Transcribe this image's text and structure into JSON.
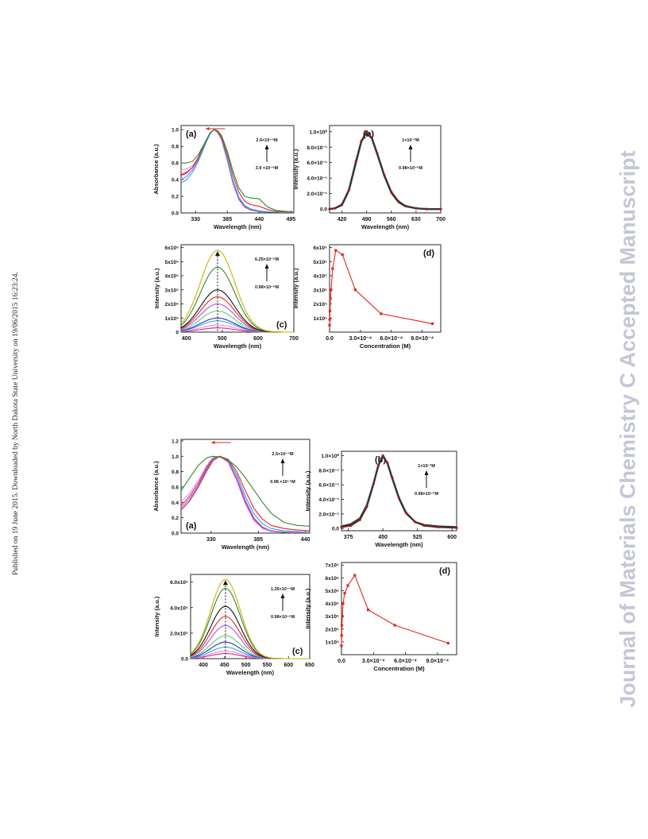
{
  "margin_left": "Published on 19 June 2015. Downloaded by North Dakota State University on 19/06/2015 16:23:24.",
  "margin_right": "Journal of Materials Chemistry C Accepted Manuscript",
  "colors": {
    "red": "#e5261d",
    "spectra": [
      "#e91c8c",
      "#f08bd0",
      "#33a6e0",
      "#2f2fcf",
      "#5bd45b",
      "#b64de0",
      "#e52525",
      "#111111",
      "#2f8a2f",
      "#d0b000"
    ]
  },
  "chart_data": [
    {
      "id": "f1a",
      "type": "line",
      "label": "(a)",
      "xlabel": "Wavelength (nm)",
      "ylabel": "Absorbance (a.u.)",
      "xlim": [
        305,
        500
      ],
      "ylim": [
        0,
        1.05
      ],
      "xticks": [
        {
          "v": 330,
          "t": "330"
        },
        {
          "v": 385,
          "t": "385"
        },
        {
          "v": 440,
          "t": "440"
        },
        {
          "v": 495,
          "t": "495"
        }
      ],
      "yticks": [
        {
          "v": 0,
          "t": "0.0"
        },
        {
          "v": 0.2,
          "t": "0.2"
        },
        {
          "v": 0.4,
          "t": "0.4"
        },
        {
          "v": 0.6,
          "t": "0.6"
        },
        {
          "v": 0.8,
          "t": "0.8"
        },
        {
          "v": 1.0,
          "t": "1.0"
        }
      ],
      "annot_top": "2.5×10⁻⁴M",
      "annot_bottom": "3.9 ×10⁻⁶M",
      "x": [
        305,
        315,
        325,
        335,
        345,
        355,
        362,
        368,
        375,
        385,
        395,
        405,
        415,
        425,
        440,
        455,
        470,
        485,
        500
      ],
      "series": [
        {
          "values": [
            0.52,
            0.53,
            0.57,
            0.66,
            0.8,
            0.95,
            1.0,
            0.98,
            0.9,
            0.66,
            0.38,
            0.18,
            0.08,
            0.04,
            0.02,
            0.01,
            0.01,
            0.005,
            0.005
          ]
        },
        {
          "values": [
            0.46,
            0.49,
            0.55,
            0.66,
            0.81,
            0.96,
            1.0,
            0.97,
            0.88,
            0.63,
            0.35,
            0.16,
            0.07,
            0.035,
            0.015,
            0.01,
            0.01,
            0.005,
            0.005
          ]
        },
        {
          "values": [
            0.4,
            0.44,
            0.52,
            0.64,
            0.8,
            0.95,
            1.0,
            0.98,
            0.89,
            0.64,
            0.36,
            0.17,
            0.08,
            0.04,
            0.02,
            0.01,
            0.01,
            0.005,
            0.005
          ]
        },
        {
          "values": [
            0.36,
            0.4,
            0.49,
            0.62,
            0.79,
            0.95,
            1.0,
            0.98,
            0.9,
            0.66,
            0.39,
            0.19,
            0.09,
            0.05,
            0.025,
            0.015,
            0.01,
            0.005,
            0.005
          ]
        },
        {
          "values": [
            0.45,
            0.48,
            0.55,
            0.67,
            0.82,
            0.96,
            1.0,
            0.98,
            0.91,
            0.7,
            0.45,
            0.25,
            0.14,
            0.1,
            0.08,
            0.04,
            0.02,
            0.01,
            0.01
          ]
        },
        {
          "values": [
            0.6,
            0.6,
            0.62,
            0.7,
            0.83,
            0.96,
            1.0,
            0.99,
            0.93,
            0.74,
            0.5,
            0.3,
            0.2,
            0.18,
            0.17,
            0.07,
            0.03,
            0.02,
            0.01
          ]
        }
      ]
    },
    {
      "id": "f1b",
      "type": "line",
      "label": "(b)",
      "xlabel": "Wavelength (nm)",
      "ylabel": "Intensity (a.u.)",
      "xlim": [
        385,
        700
      ],
      "ylim": [
        -0.05,
        1.08
      ],
      "xticks": [
        {
          "v": 420,
          "t": "420"
        },
        {
          "v": 490,
          "t": "490"
        },
        {
          "v": 560,
          "t": "560"
        },
        {
          "v": 630,
          "t": "630"
        },
        {
          "v": 700,
          "t": "700"
        }
      ],
      "yticks": [
        {
          "v": 0,
          "t": "0.0"
        },
        {
          "v": 0.2,
          "t": "2.0×10⁻¹"
        },
        {
          "v": 0.4,
          "t": "4.0×10⁻¹"
        },
        {
          "v": 0.6,
          "t": "6.0×10⁻¹"
        },
        {
          "v": 0.8,
          "t": "8.0×10⁻¹"
        },
        {
          "v": 1.0,
          "t": "1.0×10⁰"
        }
      ],
      "annot_top": "1×10⁻³M",
      "annot_bottom": "0.98×10⁻⁶M",
      "x": [
        385,
        400,
        420,
        440,
        460,
        475,
        490,
        505,
        520,
        540,
        560,
        580,
        600,
        630,
        660,
        700
      ],
      "series": [
        {
          "values": [
            0.0,
            0.01,
            0.06,
            0.25,
            0.62,
            0.88,
            1.0,
            0.92,
            0.72,
            0.44,
            0.22,
            0.1,
            0.04,
            0.01,
            0.0,
            0.0
          ]
        },
        {
          "values": [
            0.0,
            0.01,
            0.05,
            0.24,
            0.6,
            0.87,
            0.99,
            0.91,
            0.71,
            0.43,
            0.21,
            0.09,
            0.035,
            0.01,
            0.0,
            0.0
          ]
        }
      ]
    },
    {
      "id": "f1c",
      "type": "line",
      "label": "(c)",
      "xlabel": "Wavelength (nm)",
      "ylabel": "Intensity (a.u.)",
      "xlim": [
        385,
        700
      ],
      "ylim": [
        0,
        6.2
      ],
      "xticks": [
        {
          "v": 400,
          "t": "400"
        },
        {
          "v": 500,
          "t": "500"
        },
        {
          "v": 600,
          "t": "600"
        },
        {
          "v": 700,
          "t": "700"
        }
      ],
      "yticks": [
        {
          "v": 0,
          "t": "0"
        },
        {
          "v": 1,
          "t": "1x10⁵"
        },
        {
          "v": 2,
          "t": "2x10⁵"
        },
        {
          "v": 3,
          "t": "3x10⁵"
        },
        {
          "v": 4,
          "t": "4x10⁵"
        },
        {
          "v": 5,
          "t": "5x10⁵"
        },
        {
          "v": 6,
          "t": "6x10⁵"
        }
      ],
      "annot_top": "6.25×10⁻⁶M",
      "annot_bottom": "0.98×10⁻⁶M",
      "peak_x": 487,
      "peak_heights": [
        0.3,
        0.5,
        0.8,
        1.0,
        1.5,
        2.0,
        2.5,
        3.0,
        4.6,
        5.8
      ],
      "peak_width": 48
    },
    {
      "id": "f1d",
      "type": "line",
      "label": "(d)",
      "xlabel": "Concentration (M)",
      "ylabel": "Intensity (a.u.)",
      "xlim": [
        0,
        1.08
      ],
      "ylim": [
        0,
        6.2
      ],
      "xticks": [
        {
          "v": 0,
          "t": "0.0"
        },
        {
          "v": 0.3,
          "t": "3.0×10⁻⁴"
        },
        {
          "v": 0.6,
          "t": "6.0×10⁻⁴"
        },
        {
          "v": 0.9,
          "t": "9.0×10⁻⁴"
        }
      ],
      "yticks": [
        {
          "v": 1,
          "t": "1x10⁵"
        },
        {
          "v": 2,
          "t": "2x10⁵"
        },
        {
          "v": 3,
          "t": "3x10⁵"
        },
        {
          "v": 4,
          "t": "4x10⁵"
        },
        {
          "v": 5,
          "t": "5x10⁵"
        },
        {
          "v": 6,
          "t": "6x10⁵"
        }
      ],
      "x": [
        0,
        0.002,
        0.004,
        0.008,
        0.015,
        0.03,
        0.06,
        0.125,
        0.25,
        0.5,
        1.0
      ],
      "values": [
        0.5,
        0.9,
        1.5,
        2.4,
        3.0,
        4.5,
        5.8,
        5.5,
        3.0,
        1.3,
        0.6
      ]
    },
    {
      "id": "f2a",
      "type": "line",
      "label": "(a)",
      "xlabel": "Wavelength (nm)",
      "ylabel": "Absorbance (a.u.)",
      "xlim": [
        295,
        445
      ],
      "ylim": [
        0,
        1.22
      ],
      "xticks": [
        {
          "v": 330,
          "t": "330"
        },
        {
          "v": 385,
          "t": "385"
        },
        {
          "v": 440,
          "t": "440"
        }
      ],
      "yticks": [
        {
          "v": 0,
          "t": "0.0"
        },
        {
          "v": 0.2,
          "t": "0.2"
        },
        {
          "v": 0.4,
          "t": "0.4"
        },
        {
          "v": 0.6,
          "t": "0.6"
        },
        {
          "v": 0.8,
          "t": "0.8"
        },
        {
          "v": 1.0,
          "t": "1.0"
        },
        {
          "v": 1.2,
          "t": "1.2"
        }
      ],
      "annot_top": "2.5×10⁻⁴M",
      "annot_bottom": "0.98 ×10⁻⁶M",
      "x": [
        295,
        305,
        315,
        325,
        332,
        340,
        350,
        360,
        370,
        380,
        390,
        400,
        415,
        430,
        445
      ],
      "series": [
        {
          "values": [
            0.4,
            0.52,
            0.68,
            0.88,
            0.98,
            1.0,
            0.92,
            0.68,
            0.38,
            0.16,
            0.06,
            0.02,
            0.01,
            0.005,
            0.005
          ]
        },
        {
          "values": [
            0.36,
            0.48,
            0.65,
            0.86,
            0.97,
            1.0,
            0.93,
            0.7,
            0.4,
            0.18,
            0.07,
            0.03,
            0.01,
            0.005,
            0.005
          ]
        },
        {
          "values": [
            0.33,
            0.45,
            0.62,
            0.84,
            0.96,
            1.0,
            0.94,
            0.72,
            0.43,
            0.2,
            0.08,
            0.03,
            0.015,
            0.01,
            0.005
          ]
        },
        {
          "values": [
            0.3,
            0.42,
            0.6,
            0.82,
            0.95,
            1.0,
            0.95,
            0.76,
            0.48,
            0.25,
            0.12,
            0.06,
            0.03,
            0.02,
            0.01
          ]
        },
        {
          "values": [
            0.3,
            0.42,
            0.6,
            0.81,
            0.94,
            1.0,
            0.96,
            0.8,
            0.55,
            0.32,
            0.18,
            0.1,
            0.06,
            0.04,
            0.03
          ]
        },
        {
          "values": [
            0.55,
            0.72,
            0.88,
            0.98,
            1.0,
            0.99,
            0.95,
            0.86,
            0.72,
            0.56,
            0.4,
            0.26,
            0.14,
            0.1,
            0.09
          ]
        }
      ]
    },
    {
      "id": "f2b",
      "type": "line",
      "label": "(b)",
      "xlabel": "Wavelength (nm)",
      "ylabel": "Intensity (a.u.)",
      "xlim": [
        360,
        610
      ],
      "ylim": [
        -0.03,
        1.06
      ],
      "xticks": [
        {
          "v": 375,
          "t": "375"
        },
        {
          "v": 450,
          "t": "450"
        },
        {
          "v": 525,
          "t": "525"
        },
        {
          "v": 600,
          "t": "600"
        }
      ],
      "yticks": [
        {
          "v": 0,
          "t": "0.0"
        },
        {
          "v": 0.2,
          "t": "2.0×10⁻¹"
        },
        {
          "v": 0.4,
          "t": "4.0×10⁻¹"
        },
        {
          "v": 0.6,
          "t": "6.0×10⁻¹"
        },
        {
          "v": 0.8,
          "t": "8.0×10⁻¹"
        },
        {
          "v": 1.0,
          "t": "1.0×10⁰"
        }
      ],
      "annot_top": "1×10⁻³M",
      "annot_bottom": "0.98×10⁻⁶M",
      "x": [
        360,
        380,
        400,
        415,
        430,
        440,
        450,
        460,
        470,
        485,
        500,
        520,
        540,
        570,
        610
      ],
      "series": [
        {
          "values": [
            0.02,
            0.04,
            0.12,
            0.3,
            0.62,
            0.86,
            1.0,
            0.9,
            0.7,
            0.42,
            0.22,
            0.09,
            0.04,
            0.02,
            0.01
          ]
        },
        {
          "values": [
            0.03,
            0.06,
            0.14,
            0.32,
            0.63,
            0.87,
            0.99,
            0.89,
            0.69,
            0.41,
            0.21,
            0.09,
            0.05,
            0.03,
            0.02
          ]
        }
      ]
    },
    {
      "id": "f2c",
      "type": "line",
      "label": "(c)",
      "xlabel": "Wavelength (nm)",
      "ylabel": "Intensity (a.u.)",
      "xlim": [
        370,
        650
      ],
      "ylim": [
        0,
        6.6
      ],
      "xticks": [
        {
          "v": 400,
          "t": "400"
        },
        {
          "v": 450,
          "t": "450"
        },
        {
          "v": 500,
          "t": "500"
        },
        {
          "v": 550,
          "t": "550"
        },
        {
          "v": 600,
          "t": "600"
        },
        {
          "v": 650,
          "t": "650"
        }
      ],
      "yticks": [
        {
          "v": 0,
          "t": "0.0"
        },
        {
          "v": 2,
          "t": "2.0x10⁵"
        },
        {
          "v": 4,
          "t": "4.0x10⁵"
        },
        {
          "v": 6,
          "t": "6.0x10⁵"
        }
      ],
      "annot_top": "1.25×10⁻⁴M",
      "annot_bottom": "0.98×10⁻⁶M",
      "peak_x": 452,
      "peak_heights": [
        0.4,
        0.6,
        0.9,
        1.3,
        1.8,
        2.6,
        3.3,
        4.1,
        5.5,
        6.2
      ],
      "peak_width": 35
    },
    {
      "id": "f2d",
      "type": "line",
      "label": "(d)",
      "xlabel": "Concentration (M)",
      "ylabel": "Intensity (a.u.)",
      "xlim": [
        0,
        1.08
      ],
      "ylim": [
        0,
        7.2
      ],
      "xticks": [
        {
          "v": 0,
          "t": "0.0"
        },
        {
          "v": 0.3,
          "t": "3.0×10⁻⁴"
        },
        {
          "v": 0.6,
          "t": "6.0×10⁻⁴"
        },
        {
          "v": 0.9,
          "t": "9.0×10⁻⁴"
        }
      ],
      "yticks": [
        {
          "v": 1,
          "t": "1x10⁵"
        },
        {
          "v": 2,
          "t": "2x10⁵"
        },
        {
          "v": 3,
          "t": "3x10⁵"
        },
        {
          "v": 4,
          "t": "4x10⁵"
        },
        {
          "v": 5,
          "t": "5x10⁵"
        },
        {
          "v": 6,
          "t": "6x10⁵"
        },
        {
          "v": 7,
          "t": "7x10⁵"
        }
      ],
      "x": [
        0,
        0.002,
        0.004,
        0.008,
        0.015,
        0.03,
        0.06,
        0.125,
        0.25,
        0.5,
        1.0
      ],
      "values": [
        0.7,
        1.5,
        2.3,
        3.0,
        4.0,
        4.8,
        5.4,
        6.2,
        3.5,
        2.3,
        0.9
      ]
    }
  ]
}
